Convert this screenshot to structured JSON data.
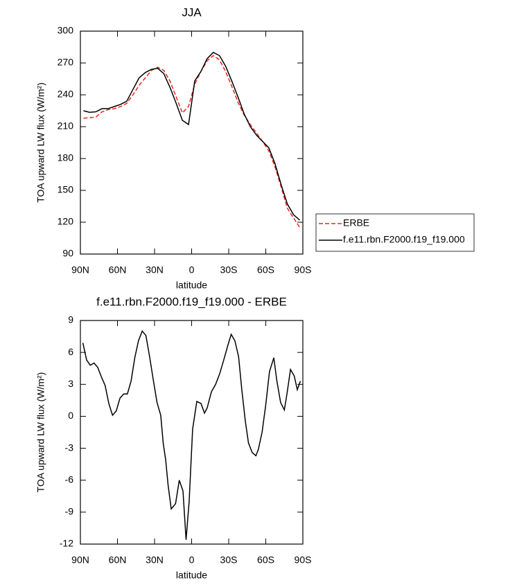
{
  "chart_data": [
    {
      "type": "line",
      "title": "JJA",
      "x_label": "latitude",
      "y_label": "TOA upward LW flux (W/m²)",
      "x": [
        87.5,
        82.5,
        77.5,
        72.5,
        67.5,
        62.5,
        57.5,
        52.5,
        47.5,
        42.5,
        37.5,
        32.5,
        27.5,
        22.5,
        17.5,
        12.5,
        7.5,
        2.5,
        -2.5,
        -7.5,
        -12.5,
        -17.5,
        -22.5,
        -27.5,
        -32.5,
        -37.5,
        -42.5,
        -47.5,
        -52.5,
        -57.5,
        -62.5,
        -67.5,
        -72.5,
        -77.5,
        -82.5,
        -87.5
      ],
      "series": [
        {
          "name": "ERBE",
          "color": "#e8241c",
          "dashed": true,
          "values": [
            218,
            218.5,
            219,
            224,
            226,
            227,
            229,
            232,
            240,
            249,
            256,
            263,
            266,
            263,
            253,
            238,
            223,
            229,
            250,
            262,
            272,
            277,
            273,
            262,
            248,
            233,
            221,
            212,
            204,
            196,
            187,
            172,
            153,
            133,
            124,
            115
          ]
        },
        {
          "name": "f.e11.rbn.F2000.f19_f19.000",
          "color": "#000000",
          "dashed": false,
          "values": [
            225,
            223.5,
            224,
            227,
            227,
            229,
            231,
            234,
            245,
            256,
            261,
            264,
            265,
            260,
            247,
            232,
            216,
            212,
            253,
            262,
            274,
            280,
            277,
            267,
            253,
            238,
            222,
            210,
            202,
            196,
            190,
            175,
            155,
            137,
            127,
            122
          ]
        }
      ],
      "xlim": [
        90,
        -90
      ],
      "xticks": [
        {
          "value": 90,
          "label": "90N"
        },
        {
          "value": 60,
          "label": "60N"
        },
        {
          "value": 30,
          "label": "30N"
        },
        0,
        {
          "value": -30,
          "label": "30S"
        },
        {
          "value": -60,
          "label": "60S"
        },
        {
          "value": -90,
          "label": "90S"
        }
      ],
      "ylim": [
        90,
        300
      ],
      "yticks": [
        90,
        120,
        150,
        180,
        210,
        240,
        270,
        300
      ],
      "legend": "right"
    },
    {
      "type": "line",
      "title": "f.e11.rbn.F2000.f19_f19.000 - ERBE",
      "x_label": "latitude",
      "y_label": "TOA upward LW flux (W/m²)",
      "x": [
        88,
        85,
        82,
        79,
        76,
        73,
        70,
        67,
        64,
        61,
        58,
        55,
        52,
        49,
        46,
        43,
        40,
        37,
        34,
        31,
        28,
        25,
        23,
        21,
        19,
        16.5,
        13,
        10,
        7,
        4.5,
        2,
        -0.8,
        -4.2,
        -7.6,
        -10.4,
        -12.6,
        -16,
        -19.4,
        -22.7,
        -26,
        -29.4,
        -32,
        -35,
        -38,
        -40.6,
        -43.5,
        -46,
        -49,
        -52,
        -54,
        -57,
        -60,
        -63,
        -66.5,
        -69,
        -72,
        -75,
        -77,
        -80,
        -83,
        -85.5,
        -88
      ],
      "series": [
        {
          "color": "#000000",
          "values": [
            6.9,
            5.3,
            4.8,
            5.0,
            4.6,
            3.7,
            2.9,
            1.2,
            0.1,
            0.5,
            1.7,
            2.1,
            2.1,
            3.3,
            5.5,
            7.1,
            8.0,
            7.6,
            5.6,
            3.4,
            1.3,
            0.1,
            -2.5,
            -4.1,
            -6.5,
            -8.7,
            -8.2,
            -6.0,
            -7.0,
            -11.6,
            -8.0,
            -1.2,
            1.4,
            1.2,
            0.3,
            0.8,
            2.3,
            3.0,
            4.0,
            5.3,
            6.7,
            7.7,
            7.1,
            5.6,
            2.5,
            -0.5,
            -2.5,
            -3.4,
            -3.7,
            -3.1,
            -1.5,
            1.1,
            4.2,
            5.5,
            3.3,
            1.3,
            0.6,
            2.0,
            4.4,
            3.8,
            2.5,
            3.3
          ]
        }
      ],
      "xlim": [
        90,
        -90
      ],
      "xticks": [
        {
          "value": 90,
          "label": "90N"
        },
        {
          "value": 60,
          "label": "60N"
        },
        {
          "value": 30,
          "label": "30N"
        },
        0,
        {
          "value": -30,
          "label": "30S"
        },
        {
          "value": -60,
          "label": "60S"
        },
        {
          "value": -90,
          "label": "90S"
        }
      ],
      "ylim": [
        -12,
        9
      ],
      "yticks": [
        -12,
        -9,
        -6,
        -3,
        0,
        3,
        6,
        9
      ]
    }
  ]
}
